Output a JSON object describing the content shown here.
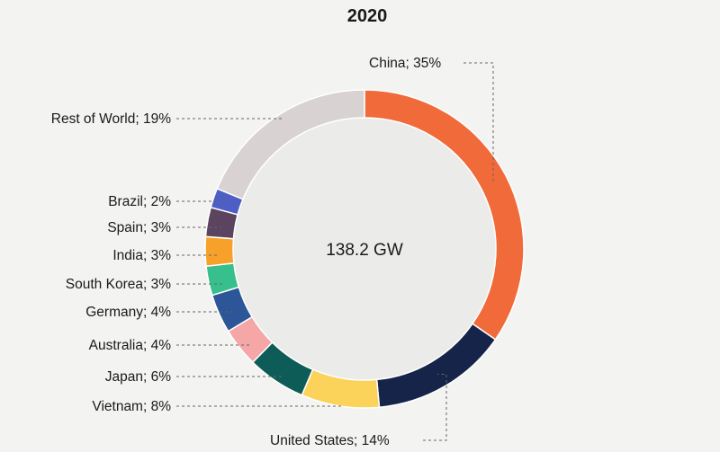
{
  "chart_data": {
    "type": "pie",
    "title": "2020",
    "center_label": "138.2 GW",
    "slices": [
      {
        "name": "China",
        "value": 35,
        "label": "China; 35%",
        "color": "#f06a3a"
      },
      {
        "name": "United States",
        "value": 14,
        "label": "United States; 14%",
        "color": "#17244a"
      },
      {
        "name": "Vietnam",
        "value": 8,
        "label": "Vietnam; 8%",
        "color": "#fbd25a"
      },
      {
        "name": "Japan",
        "value": 6,
        "label": "Japan; 6%",
        "color": "#0d5c58"
      },
      {
        "name": "Australia",
        "value": 4,
        "label": "Australia; 4%",
        "color": "#f5a6a6"
      },
      {
        "name": "Germany",
        "value": 4,
        "label": "Germany; 4%",
        "color": "#2c5697"
      },
      {
        "name": "South Korea",
        "value": 3,
        "label": "South Korea; 3%",
        "color": "#37c08e"
      },
      {
        "name": "India",
        "value": 3,
        "label": "India; 3%",
        "color": "#f7a12a"
      },
      {
        "name": "Spain",
        "value": 3,
        "label": "Spain; 3%",
        "color": "#5b4460"
      },
      {
        "name": "Brazil",
        "value": 2,
        "label": "Brazil; 2%",
        "color": "#4d5fc4"
      },
      {
        "name": "Rest of World",
        "value": 19,
        "label": "Rest of World; 19%",
        "color": "#d8d2d2"
      }
    ]
  }
}
